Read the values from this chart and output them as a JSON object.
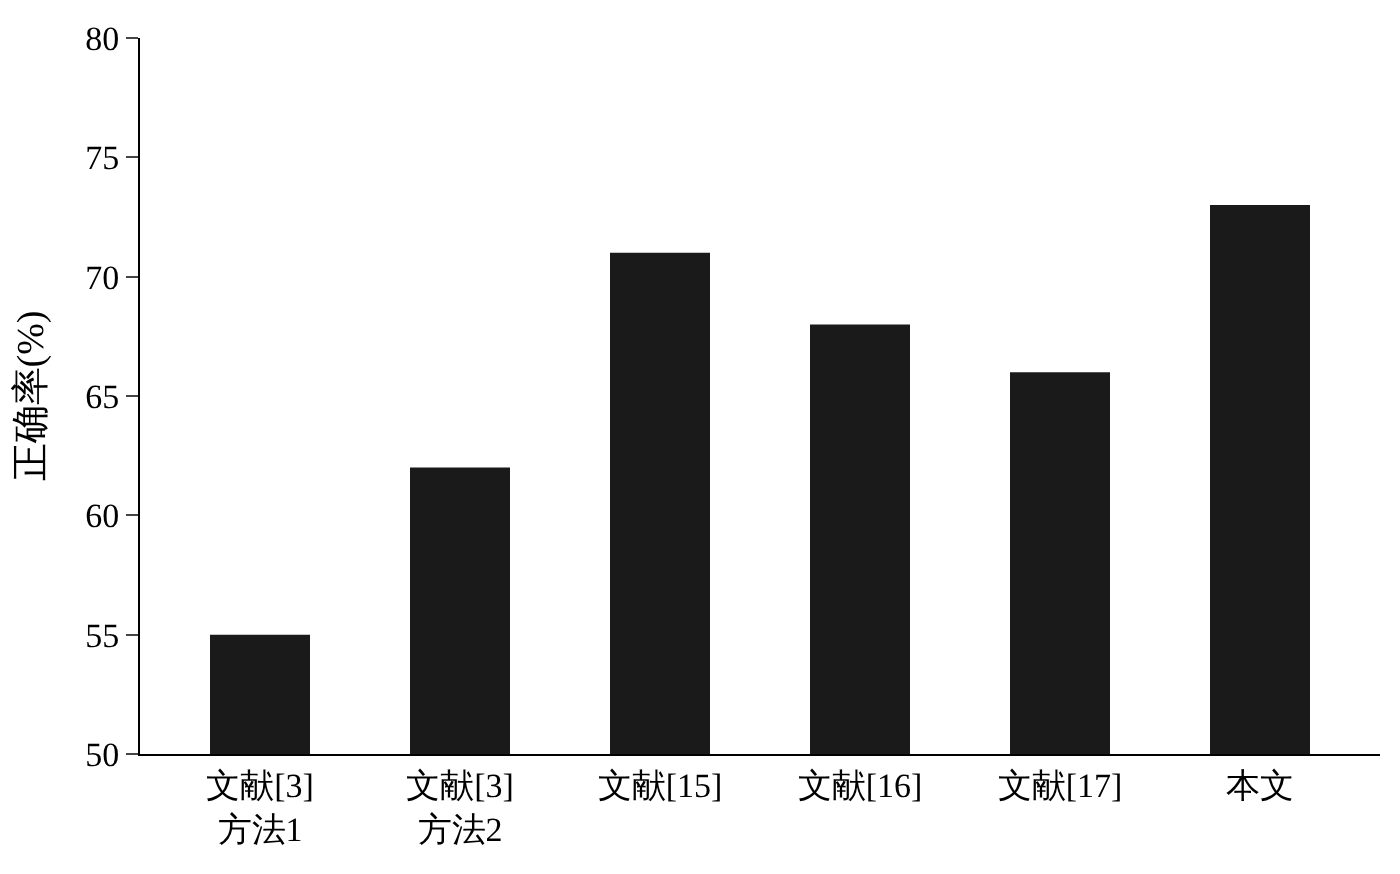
{
  "chart_data": {
    "type": "bar",
    "ylabel": "正确率(%)",
    "categories": [
      "文献[3]\n方法1",
      "文献[3]\n方法2",
      "文献[15]",
      "文献[16]",
      "文献[17]",
      "本文"
    ],
    "values": [
      55,
      62,
      71,
      68,
      66,
      73
    ],
    "color": "#1a1a1a",
    "ylim": [
      50,
      80
    ],
    "yticks": [
      50,
      55,
      60,
      65,
      70,
      75,
      80
    ]
  }
}
